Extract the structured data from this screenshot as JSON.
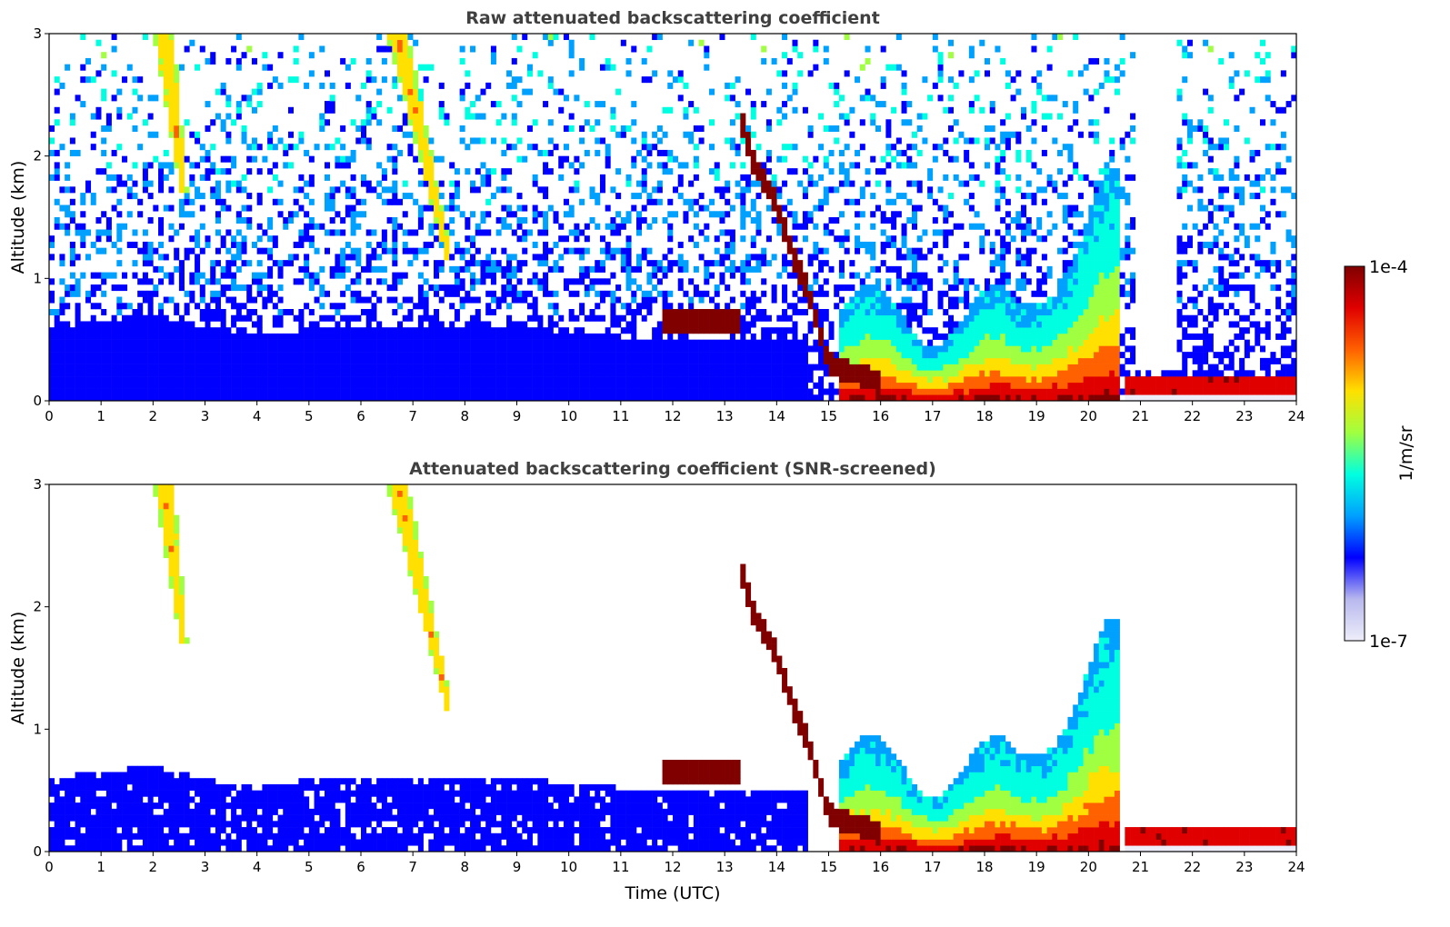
{
  "chart_data": [
    {
      "type": "heatmap",
      "title": "Raw attenuated backscattering coefficient",
      "xlabel": "",
      "ylabel": "Altitude (km)",
      "xlim": [
        0,
        24
      ],
      "ylim": [
        0,
        3
      ],
      "xticks": [
        "0",
        "1",
        "2",
        "3",
        "4",
        "5",
        "6",
        "7",
        "8",
        "9",
        "10",
        "11",
        "12",
        "13",
        "14",
        "15",
        "16",
        "17",
        "18",
        "19",
        "20",
        "21",
        "22",
        "23",
        "24"
      ],
      "yticks": [
        "0",
        "1",
        "2",
        "3"
      ],
      "screened": false
    },
    {
      "type": "heatmap",
      "title": "Attenuated backscattering coefficient (SNR-screened)",
      "xlabel": "Time (UTC)",
      "ylabel": "Altitude (km)",
      "xlim": [
        0,
        24
      ],
      "ylim": [
        0,
        3
      ],
      "xticks": [
        "0",
        "1",
        "2",
        "3",
        "4",
        "5",
        "6",
        "7",
        "8",
        "9",
        "10",
        "11",
        "12",
        "13",
        "14",
        "15",
        "16",
        "17",
        "18",
        "19",
        "20",
        "21",
        "22",
        "23",
        "24"
      ],
      "yticks": [
        "0",
        "1",
        "2",
        "3"
      ],
      "screened": true
    }
  ],
  "colorbar": {
    "label": "1/m/sr",
    "max_label": "1e-4",
    "min_label": "1e-7",
    "scale": "log",
    "colormap": [
      "#eeeefa",
      "#b8b8ee",
      "#0000ff",
      "#00a0ff",
      "#00ffe0",
      "#a0ff40",
      "#ffe000",
      "#ff6000",
      "#e00000",
      "#800000"
    ]
  },
  "features": {
    "boundary_layer_top_km": [
      [
        0,
        0.6
      ],
      [
        2,
        0.7
      ],
      [
        3.5,
        0.55
      ],
      [
        6,
        0.6
      ],
      [
        9,
        0.6
      ],
      [
        11.5,
        0.5
      ],
      [
        14.5,
        0.5
      ]
    ],
    "cirrus_streaks": [
      {
        "t_start": 2.2,
        "t_end": 2.6,
        "alt_top": 3.0,
        "alt_bottom": 1.7
      },
      {
        "t_start": 6.7,
        "t_end": 7.7,
        "alt_top": 3.0,
        "alt_bottom": 1.15
      }
    ],
    "elevated_layer": {
      "t_start": 11.8,
      "t_end": 13.3,
      "alt_center": 0.65
    },
    "descending_layer": [
      [
        13.3,
        2.35
      ],
      [
        13.5,
        2.0
      ],
      [
        14.0,
        1.6
      ],
      [
        14.3,
        1.2
      ],
      [
        14.6,
        0.9
      ],
      [
        15.0,
        0.3
      ],
      [
        16.0,
        0.15
      ]
    ],
    "afternoon_plume": {
      "t_start": 15.2,
      "t_end": 20.6,
      "peak_alt": 1.9
    },
    "night_layer": {
      "t_start": 20.7,
      "t_end": 24,
      "alt_top": 0.2
    }
  }
}
